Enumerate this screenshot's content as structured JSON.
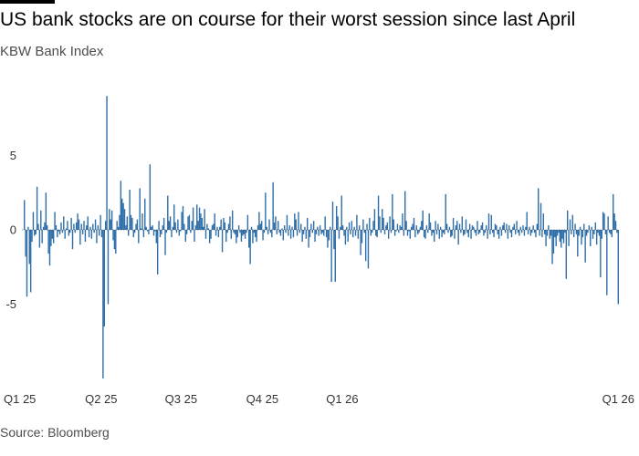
{
  "header": {
    "title": "US bank stocks are on course for their worst session since last April",
    "subtitle": "KBW Bank Index"
  },
  "footer": {
    "source": "Source: Bloomberg"
  },
  "colors": {
    "bar": "#2e6ea9",
    "zero_line": "#333333",
    "text": "#000000",
    "muted": "#4d4d4d"
  },
  "chart_data": {
    "type": "bar",
    "title": "US bank stocks are on course for their worst session since last April",
    "subtitle": "KBW Bank Index",
    "ylabel": "",
    "xlabel": "",
    "ylim": [
      -10,
      9.5
    ],
    "yticks": [
      5,
      0,
      -5
    ],
    "x_tick_labels": [
      {
        "label": "Q1 25",
        "index": 0
      },
      {
        "label": "Q2 25",
        "index": 61
      },
      {
        "label": "Q3 25",
        "index": 124
      },
      {
        "label": "Q4 25",
        "index": 188
      },
      {
        "label": "Q1 26",
        "index": 251
      },
      {
        "label": "Q1 26",
        "index": 283
      }
    ],
    "grid": false,
    "legend": "none",
    "series": [
      {
        "values": [
          2.0,
          -1.8,
          -4.5,
          0.2,
          -2.3,
          -4.2,
          -0.8,
          1.2,
          -0.4,
          -0.3,
          2.9,
          0.4,
          -1.2,
          1.3,
          -0.9,
          0.2,
          0.5,
          2.5,
          0.3,
          -1.6,
          -2.4,
          -1.1,
          -0.6,
          -0.9,
          1.2,
          0.3,
          -0.5,
          -0.1,
          -0.3,
          0.5,
          -0.2,
          0.9,
          -0.6,
          0.1,
          0.6,
          -0.4,
          -0.2,
          0.8,
          -1.3,
          0.4,
          -0.2,
          0.5,
          1.1,
          0.7,
          -1.0,
          0.4,
          -0.3,
          0.6,
          -0.8,
          0.3,
          0.9,
          -0.5,
          0.2,
          -0.6,
          0.4,
          -0.2,
          0.7,
          -0.9,
          0.3,
          -0.4,
          1.0,
          -0.5,
          -10.0,
          -6.5,
          0.6,
          9.0,
          -5.0,
          1.4,
          0.7,
          1.3,
          -0.7,
          -1.3,
          -1.6,
          0.6,
          0.2,
          1.0,
          3.3,
          2.1,
          1.8,
          1.4,
          0.3,
          0.9,
          -0.4,
          2.7,
          1.0,
          0.8,
          -0.5,
          -0.2,
          0.4,
          0.7,
          -0.9,
          2.8,
          0.1,
          1.1,
          -0.5,
          2.1,
          0.2,
          -0.1,
          -0.3,
          4.4,
          0.2,
          0.3,
          -0.4,
          -0.1,
          -0.9,
          -3.0,
          0.6,
          -0.5,
          -0.3,
          0.3,
          0.8,
          -1.7,
          -0.2,
          2.3,
          0.6,
          0.9,
          -0.5,
          0.2,
          1.7,
          0.5,
          -0.2,
          0.7,
          -0.4,
          -0.1,
          1.2,
          1.6,
          0.4,
          -0.8,
          -0.3,
          0.9,
          1.0,
          -0.2,
          0.6,
          1.5,
          -0.8,
          0.3,
          1.7,
          0.6,
          1.5,
          1.1,
          0.8,
          0.2,
          1.4,
          -0.6,
          0.4,
          0.1,
          -0.9,
          -0.6,
          0.3,
          0.4,
          1.1,
          -0.4,
          0.2,
          -0.5,
          0.2,
          0.7,
          -1.5,
          0.8,
          0.5,
          -0.8,
          -0.2,
          0.4,
          0.9,
          -0.6,
          1.3,
          -0.2,
          -0.3,
          -0.9,
          -0.5,
          0.3,
          -0.2,
          -0.8,
          -0.4,
          -0.3,
          -0.6,
          -0.2,
          1.0,
          -1.2,
          -2.3,
          0.2,
          -0.9,
          -0.2,
          -0.5,
          -0.8,
          0.3,
          1.2,
          0.4,
          0.6,
          -0.7,
          -0.2,
          2.5,
          0.2,
          -0.3,
          0.7,
          -0.2,
          -0.5,
          3.2,
          0.5,
          0.9,
          -0.3,
          0.6,
          -0.2,
          -0.4,
          0.1,
          -0.7,
          0.3,
          -0.2,
          1.0,
          -0.4,
          0.3,
          -0.6,
          0.2,
          -0.5,
          1.1,
          0.7,
          -0.4,
          1.2,
          -0.2,
          0.4,
          -0.8,
          -0.3,
          0.2,
          -0.6,
          0.8,
          -1.2,
          -0.5,
          0.4,
          -0.2,
          0.6,
          -0.8,
          -0.3,
          0.2,
          -0.4,
          0.3,
          -0.3,
          -0.2,
          -0.4,
          0.9,
          -0.5,
          -1.2,
          -0.7,
          0.2,
          -3.5,
          1.9,
          -1.3,
          -3.5,
          1.6,
          0.9,
          -0.6,
          0.2,
          2.3,
          0.3,
          -0.4,
          -1.0,
          0.2,
          -0.8,
          0.5,
          -0.3,
          0.6,
          -0.5,
          0.2,
          -0.4,
          1.0,
          -0.6,
          0.3,
          -1.7,
          -0.9,
          0.7,
          -0.2,
          -2.1,
          0.4,
          -2.6,
          0.8,
          -0.4,
          -0.2,
          0.6,
          1.4,
          -0.4,
          -0.5,
          2.3,
          0.9,
          -0.2,
          1.4,
          0.8,
          -0.3,
          0.3,
          0.5,
          -0.6,
          0.9,
          -0.2,
          2.4,
          0.7,
          -0.4,
          -0.1,
          0.4,
          -0.2,
          0.3,
          0.2,
          1.1,
          -0.4,
          2.6,
          0.6,
          -0.4,
          -0.1,
          -0.6,
          0.2,
          0.4,
          0.8,
          -0.5,
          0.3,
          -0.3,
          -0.2,
          0.2,
          0.6,
          1.3,
          -0.5,
          -0.6,
          0.3,
          -0.2,
          1.1,
          0.5,
          -0.4,
          -0.2,
          -0.8,
          0.6,
          -0.3,
          0.4,
          -0.6,
          0.2,
          -0.5,
          -0.2,
          -0.3,
          2.4,
          0.4,
          -0.2,
          0.2,
          -0.5,
          -0.4,
          0.8,
          -0.6,
          0.3,
          0.6,
          -1.0,
          0.4,
          -0.2,
          0.9,
          -0.4,
          -0.3,
          0.7,
          -0.2,
          -0.5,
          0.4,
          -0.6,
          0.3,
          0.2,
          -0.2,
          -0.4,
          0.6,
          -0.3,
          -0.2,
          0.3,
          0.5,
          -0.4,
          -0.2,
          0.3,
          -0.6,
          1.1,
          -0.3,
          1.0,
          -0.2,
          -0.5,
          0.4,
          0.3,
          -0.3,
          -0.6,
          0.2,
          -0.4,
          0.3,
          0.5,
          -0.2,
          0.4,
          -0.6,
          0.3,
          -0.2,
          -0.5,
          0.2,
          0.4,
          -0.3,
          0.6,
          -0.2,
          -0.4,
          0.2,
          -0.2,
          0.3,
          -0.4,
          0.2,
          1.2,
          -0.3,
          0.2,
          -0.4,
          -0.2,
          0.3,
          -0.2,
          -0.5,
          0.4,
          2.8,
          -0.4,
          1.8,
          -0.5,
          1.1,
          -0.3,
          -1.1,
          -0.4,
          0.3,
          -0.6,
          -0.4,
          -2.3,
          -1.6,
          -0.5,
          -1.1,
          -0.4,
          -0.2,
          -0.8,
          -1.2,
          -0.6,
          -0.9,
          -0.2,
          -3.3,
          1.3,
          -1.1,
          0.7,
          -0.3,
          1.0,
          -0.5,
          0.4,
          -0.3,
          -1.8,
          -0.4,
          0.2,
          -1.0,
          -0.5,
          0.4,
          -2.2,
          -0.4,
          -0.2,
          0.3,
          -1.1,
          0.2,
          -0.6,
          -0.3,
          0.5,
          -1.0,
          -0.2,
          -0.4,
          -3.2,
          -0.6,
          1.2,
          1.1,
          -0.3,
          -4.4,
          0.9,
          -0.2,
          -0.3,
          -0.5,
          2.4,
          1.1,
          0.6,
          -0.2,
          -5.0
        ]
      }
    ]
  }
}
